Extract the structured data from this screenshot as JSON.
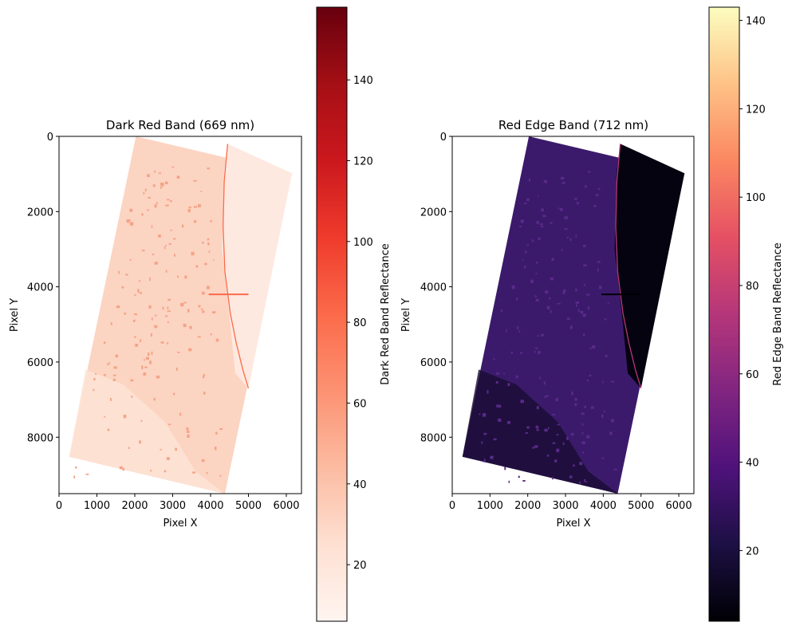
{
  "chart_data": [
    {
      "type": "heatmap",
      "title": "Dark Red Band (669 nm)",
      "xlabel": "Pixel X",
      "ylabel": "Pixel Y",
      "xlim": [
        0,
        6400
      ],
      "ylim": [
        9500,
        0
      ],
      "xticks": [
        0,
        1000,
        2000,
        3000,
        4000,
        5000,
        6000
      ],
      "yticks": [
        0,
        2000,
        4000,
        6000,
        8000
      ],
      "image_corners": [
        [
          2030,
          0
        ],
        [
          6150,
          980
        ],
        [
          4380,
          9500
        ],
        [
          270,
          8520
        ]
      ],
      "colormap": "Reds",
      "colors": {
        "low": "#fff5f0",
        "mid": "#fb6a4a",
        "high": "#67000d",
        "land": "#fcd4c2",
        "urban": "#f4a387",
        "water": "#fee9e0"
      },
      "colorbar": {
        "label": "Dark Red Band Reflectance",
        "min": 6,
        "max": 158,
        "ticks": [
          20,
          40,
          60,
          80,
          100,
          120,
          140
        ]
      }
    },
    {
      "type": "heatmap",
      "title": "Red Edge Band (712 nm)",
      "xlabel": "Pixel X",
      "ylabel": "Pixel Y",
      "xlim": [
        0,
        6400
      ],
      "ylim": [
        9500,
        0
      ],
      "xticks": [
        0,
        1000,
        2000,
        3000,
        4000,
        5000,
        6000
      ],
      "yticks": [
        0,
        2000,
        4000,
        6000,
        8000
      ],
      "image_corners": [
        [
          2030,
          0
        ],
        [
          6150,
          980
        ],
        [
          4380,
          9500
        ],
        [
          270,
          8520
        ]
      ],
      "colormap": "magma",
      "colors": {
        "low": "#000004",
        "mid": "#b73779",
        "high": "#fcfdbf",
        "land": "#3b1a6b",
        "urban": "#5a2a8a",
        "water": "#05030f"
      },
      "colorbar": {
        "label": "Red Edge Band Reflectance",
        "min": 4,
        "max": 143,
        "ticks": [
          20,
          40,
          60,
          80,
          100,
          120,
          140
        ]
      }
    }
  ]
}
